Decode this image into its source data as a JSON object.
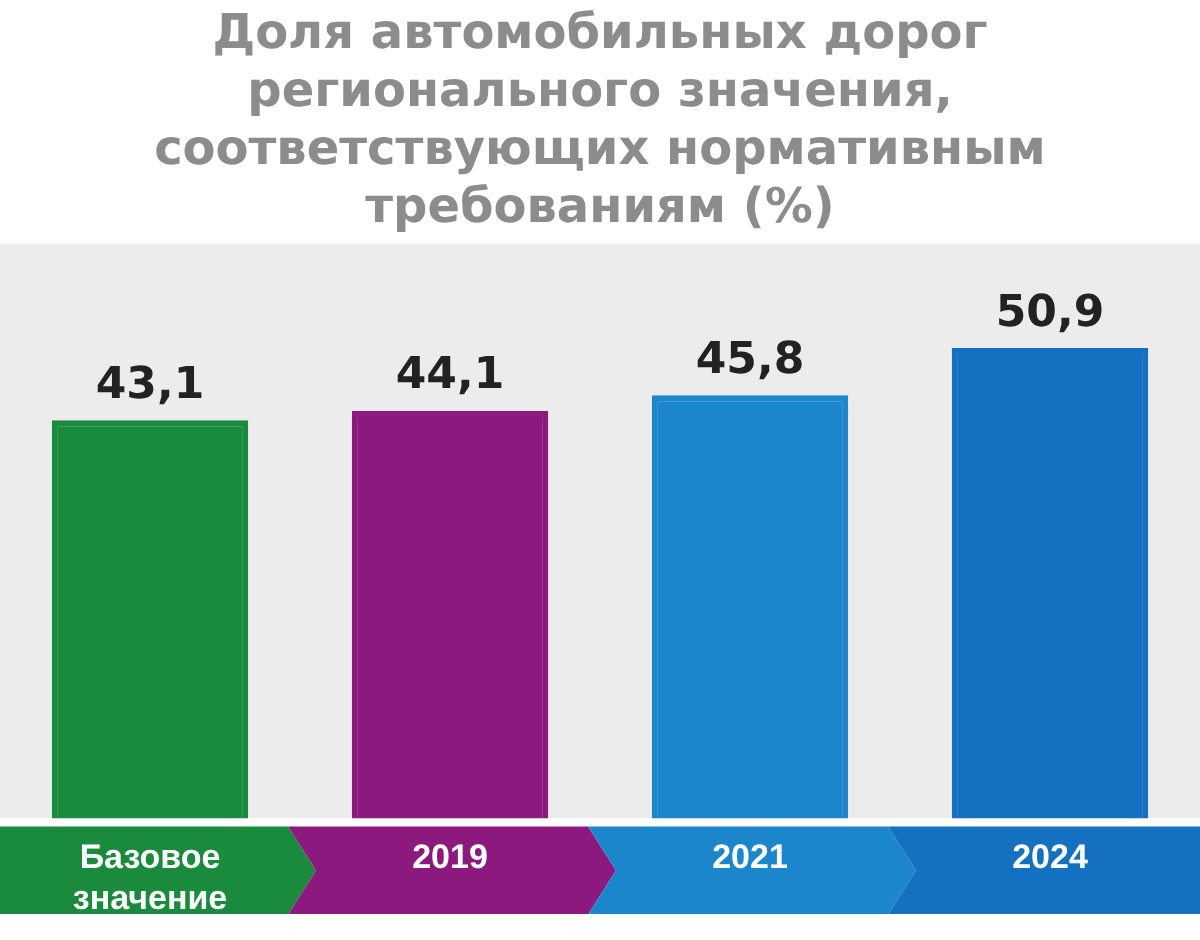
{
  "chart_data": {
    "type": "bar",
    "title": "Доля автомобильных дорог регионального значения, соответствующих нормативным требованиям (%)",
    "categories": [
      "Базовое значение",
      "2019",
      "2021",
      "2024"
    ],
    "values": [
      43.1,
      44.1,
      45.8,
      50.9
    ],
    "colors": [
      "#1a8a3c",
      "#8c1a7e",
      "#1c86cc",
      "#1470c0"
    ],
    "value_labels": [
      "43,1",
      "44,1",
      "45,8",
      "50,9"
    ],
    "grid": false,
    "legend": false
  }
}
